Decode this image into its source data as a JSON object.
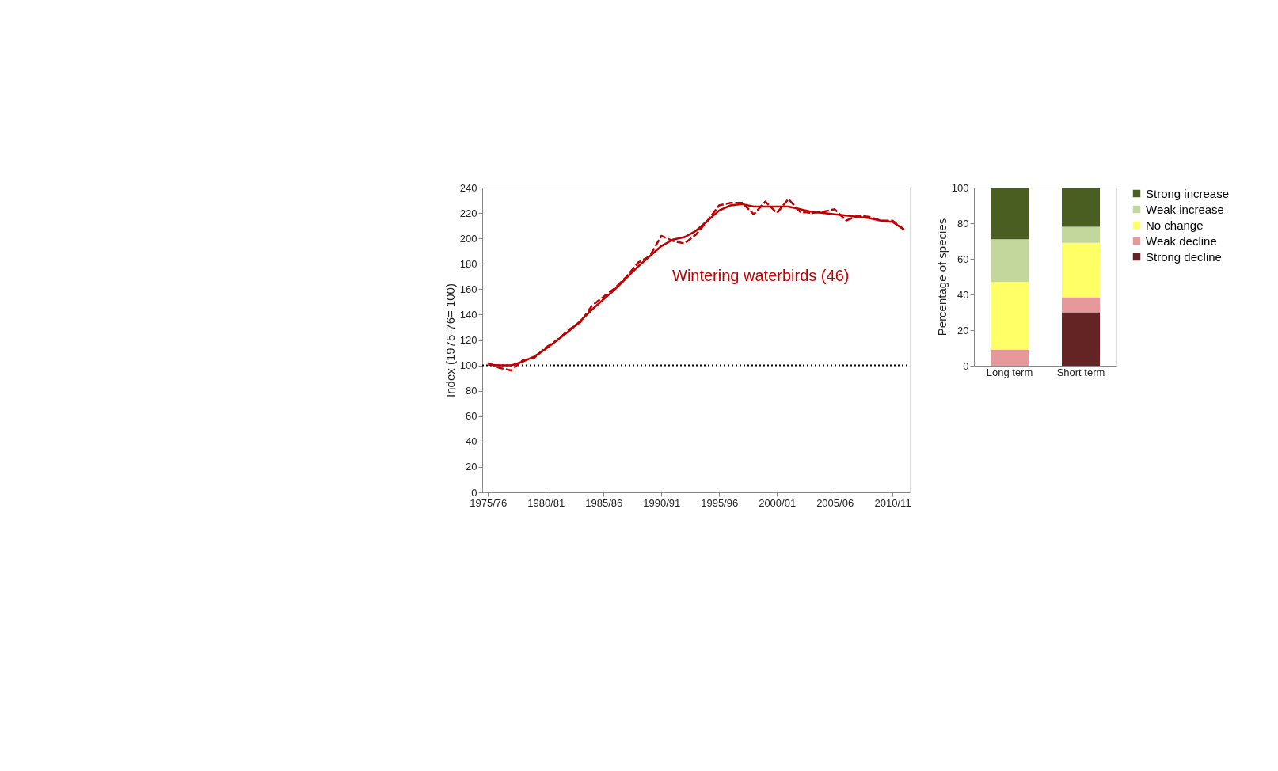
{
  "chart_data": [
    {
      "type": "line",
      "ylabel": "Index (1975-76= 100)",
      "categories": [
        "1975/76",
        null,
        null,
        null,
        null,
        "1980/81",
        null,
        null,
        null,
        null,
        "1985/86",
        null,
        null,
        null,
        null,
        "1990/91",
        null,
        null,
        null,
        null,
        "1995/96",
        null,
        null,
        null,
        null,
        "2000/01",
        null,
        null,
        null,
        null,
        "2005/06",
        null,
        null,
        null,
        null,
        "2010/11",
        null
      ],
      "series": [
        {
          "color": "#c00000",
          "line_style": "solid",
          "values": [
            100.5,
            100,
            100,
            103,
            107,
            113,
            120,
            127,
            135,
            144,
            152,
            160,
            169,
            178,
            186,
            194,
            199,
            201,
            206,
            214,
            222,
            226,
            227,
            225,
            225,
            225,
            225,
            223,
            221,
            220,
            219,
            218,
            217,
            216,
            214,
            213,
            207
          ]
        },
        {
          "color": "#c00000",
          "line_style": "dashed",
          "values": [
            102,
            98,
            96,
            104,
            106,
            114,
            120,
            128,
            134,
            147,
            154,
            161,
            170,
            181,
            186,
            202,
            198,
            196,
            203,
            214,
            226,
            228,
            228,
            219,
            229,
            220,
            231,
            221,
            220,
            221,
            223,
            214,
            218,
            217,
            214,
            214,
            207
          ]
        }
      ],
      "ylim": [
        0,
        240
      ],
      "yticks": [
        0,
        20,
        40,
        60,
        80,
        100,
        120,
        140,
        160,
        180,
        200,
        220,
        240
      ],
      "ref_lines": [
        {
          "axis": "y",
          "value": 100,
          "color": "#000000",
          "line_style": "dotted"
        }
      ],
      "annotations": [
        "Wintering waterbirds (46)"
      ],
      "grid": false,
      "marker": "none"
    },
    {
      "type": "bar",
      "stacked": true,
      "ylabel": "Percentage of species",
      "categories": [
        "Long term",
        "Short term"
      ],
      "series": [
        {
          "name": "Strong decline",
          "color": "#632423",
          "values": [
            0,
            30
          ]
        },
        {
          "name": "Weak decline",
          "color": "#e6999a",
          "values": [
            9,
            8.5
          ]
        },
        {
          "name": "No change",
          "color": "#ffff66",
          "values": [
            38,
            30.5
          ]
        },
        {
          "name": "Weak increase",
          "color": "#c3d69b",
          "values": [
            24,
            9
          ]
        },
        {
          "name": "Strong increase",
          "color": "#4a5e22",
          "values": [
            29,
            22
          ]
        }
      ],
      "ylim": [
        0,
        100
      ],
      "yticks": [
        0,
        20,
        40,
        60,
        80,
        100
      ],
      "grid": false,
      "legend": "right"
    }
  ]
}
